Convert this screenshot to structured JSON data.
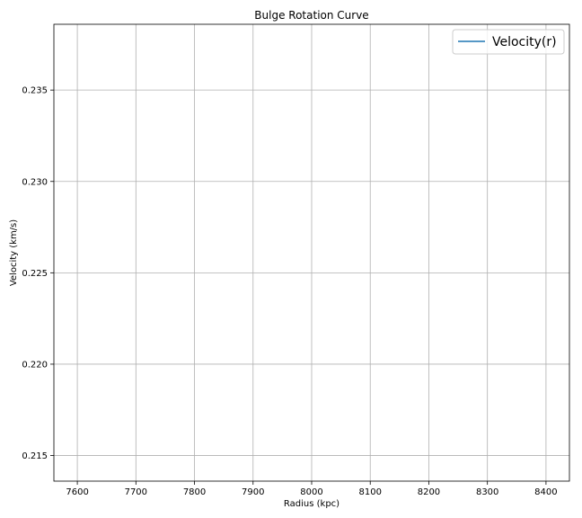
{
  "chart_data": {
    "type": "line",
    "title": "Bulge Rotation Curve",
    "xlabel": "Radius (kpc)",
    "ylabel": "Velocity (km/s)",
    "xlim": [
      7560,
      8440
    ],
    "ylim": [
      0.2136,
      0.2386
    ],
    "x_ticks": [
      7600,
      7700,
      7800,
      7900,
      8000,
      8100,
      8200,
      8300,
      8400
    ],
    "y_ticks": [
      0.215,
      0.22,
      0.225,
      0.23,
      0.235
    ],
    "x_tick_labels": [
      "7600",
      "7700",
      "7800",
      "7900",
      "8000",
      "8100",
      "8200",
      "8300",
      "8400"
    ],
    "y_tick_labels": [
      "0.215",
      "0.220",
      "0.225",
      "0.230",
      "0.235"
    ],
    "grid": true,
    "legend_position": "top-right",
    "series": [
      {
        "name": "Velocity(r)",
        "color": "#1f77b4",
        "x": [],
        "y": []
      }
    ]
  }
}
